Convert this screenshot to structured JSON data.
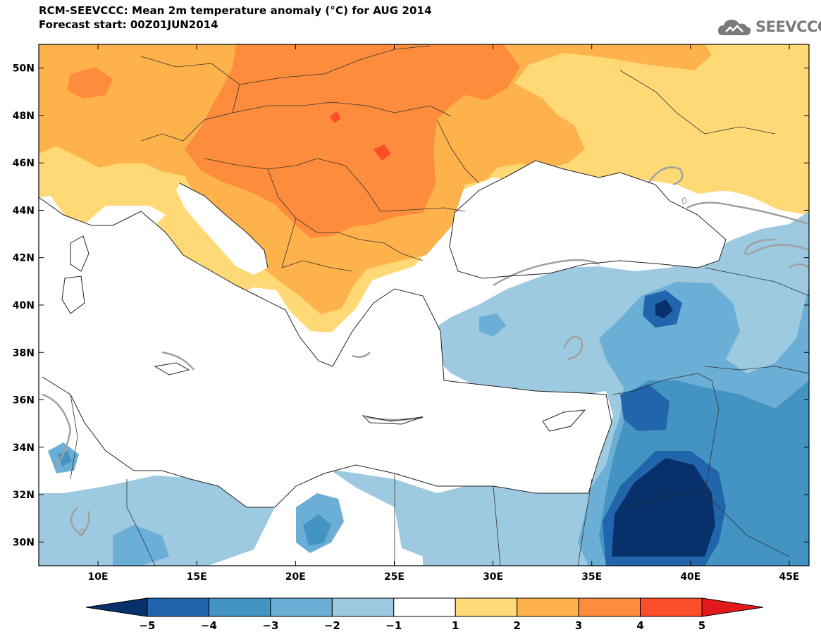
{
  "header": {
    "title": "RCM-SEEVCCC: Mean 2m temperature anomaly (°C) for AUG 2014",
    "subtitle": "Forecast start: 00Z01JUN2014"
  },
  "logo": {
    "text": "SEEVCCC",
    "icon": "cloud-icon",
    "color": "#7a7a7a"
  },
  "map": {
    "lon_range": [
      7,
      46
    ],
    "lat_range": [
      29,
      51
    ],
    "x_ticks": [
      "10E",
      "15E",
      "20E",
      "25E",
      "30E",
      "35E",
      "40E",
      "45E"
    ],
    "y_ticks": [
      "50N",
      "48N",
      "46N",
      "44N",
      "42N",
      "40N",
      "38N",
      "36N",
      "34N",
      "32N",
      "30N"
    ],
    "contour_label": "0"
  },
  "colorbar": {
    "labels": [
      "−5",
      "−4",
      "−3",
      "−2",
      "−1",
      "1",
      "2",
      "3",
      "4",
      "5"
    ],
    "colors": [
      "#08306b",
      "#2166ac",
      "#4393c3",
      "#6baed6",
      "#9ecae1",
      "#ffffff",
      "#fed976",
      "#feb24c",
      "#fd8d3c",
      "#fc4e2a",
      "#e31a1c"
    ]
  }
}
